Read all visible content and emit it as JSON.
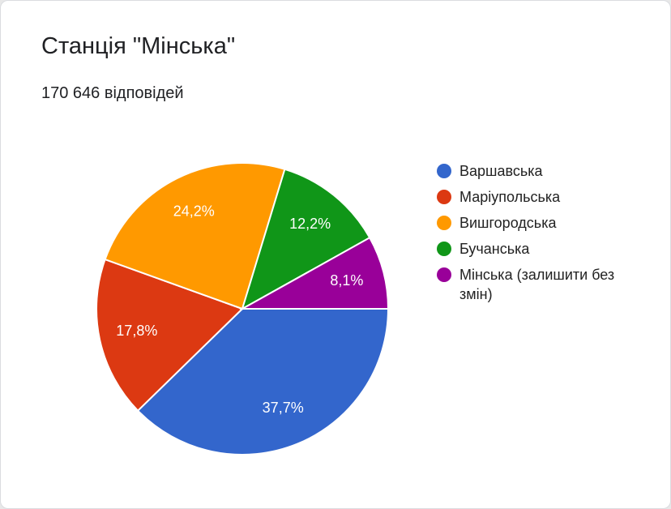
{
  "chart_data": {
    "type": "pie",
    "title": "Станція \"Мінська\"",
    "subtitle": "170 646 відповідей",
    "categories": [
      "Варшавська",
      "Маріупольська",
      "Вишгородська",
      "Бучанська",
      "Мінська (залишити без змін)"
    ],
    "values": [
      37.7,
      17.8,
      24.2,
      12.2,
      8.1
    ],
    "value_labels": [
      "37,7%",
      "17,8%",
      "24,2%",
      "12,2%",
      "8,1%"
    ],
    "colors": [
      "#3366cc",
      "#dc3912",
      "#ff9900",
      "#109618",
      "#990099"
    ]
  }
}
